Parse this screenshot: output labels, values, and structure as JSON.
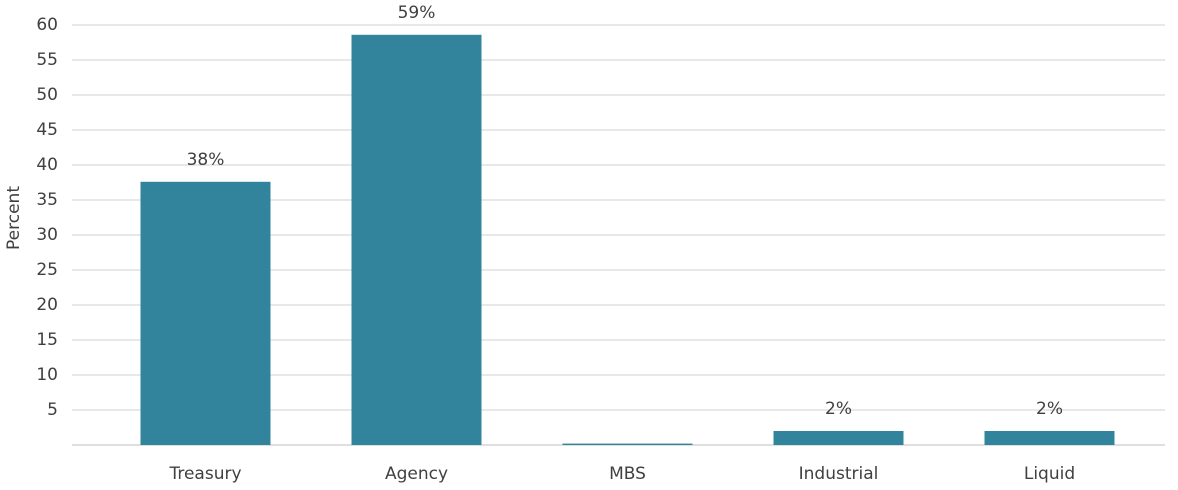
{
  "chart_data": {
    "type": "bar",
    "y_label": "Percent",
    "categories": [
      "Treasury",
      "Agency",
      "MBS",
      "Industrial",
      "Liquid"
    ],
    "values": [
      37.6,
      58.6,
      0.2,
      2,
      2
    ],
    "value_labels": [
      "38%",
      "59%",
      null,
      "2%",
      "2%"
    ],
    "color": "#31849b",
    "ylim": [
      0,
      60
    ],
    "yticks": [
      5,
      10,
      15,
      20,
      25,
      30,
      35,
      40,
      45,
      50,
      55,
      60
    ],
    "grid": true
  }
}
